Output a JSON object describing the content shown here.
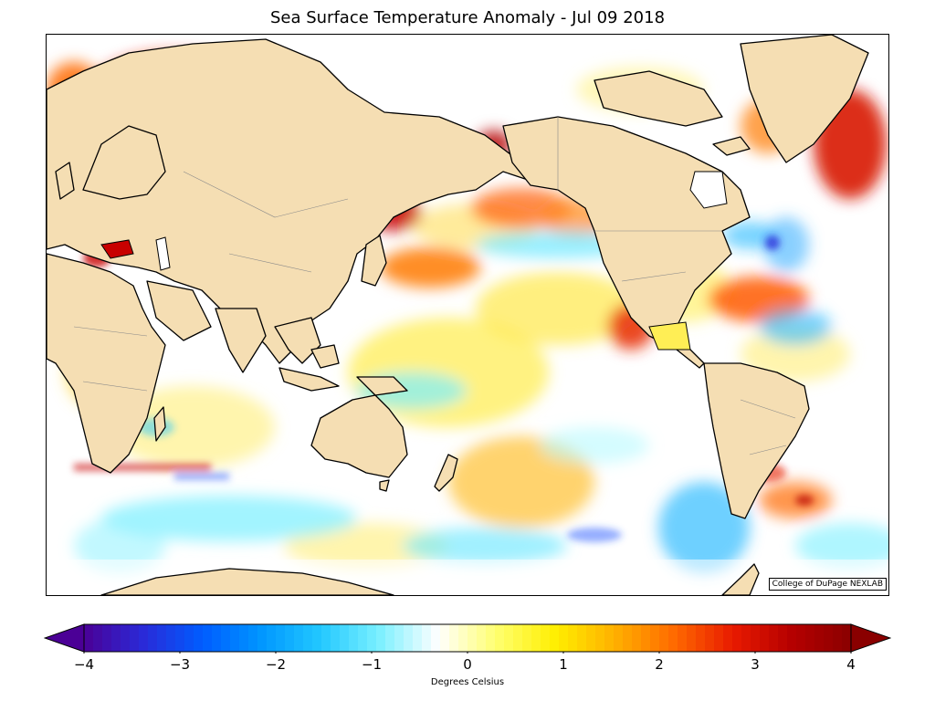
{
  "title": "Sea Surface Temperature Anomaly - Jul 09 2018",
  "credit": "College of DuPage NEXLAB",
  "colorbar": {
    "label": "Degrees Celsius",
    "min": -4,
    "max": 4,
    "ticks": [
      {
        "value": -4,
        "label": "−4"
      },
      {
        "value": -3,
        "label": "−3"
      },
      {
        "value": -2,
        "label": "−2"
      },
      {
        "value": -1,
        "label": "−1"
      },
      {
        "value": 0,
        "label": "0"
      },
      {
        "value": 1,
        "label": "1"
      },
      {
        "value": 2,
        "label": "2"
      },
      {
        "value": 3,
        "label": "3"
      },
      {
        "value": 4,
        "label": "4"
      }
    ],
    "colors": [
      "#4b0096",
      "#2a2ad8",
      "#005cff",
      "#0096ff",
      "#22c8ff",
      "#7af0ff",
      "#ffffff",
      "#ffff6e",
      "#ffee00",
      "#ffb000",
      "#ff6a00",
      "#e81a00",
      "#b50000",
      "#8a0000"
    ]
  },
  "colors": {
    "land": "#f5deb3",
    "ocean_neutral": "#ffffff",
    "coast": "#000000",
    "border": "#888888"
  }
}
